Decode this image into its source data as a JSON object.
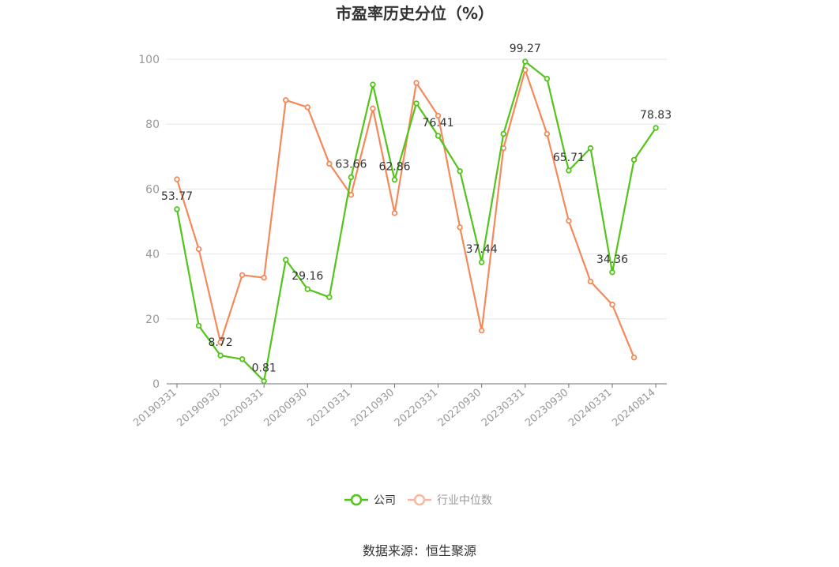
{
  "chart_data": {
    "type": "line",
    "title": "市盈率历史分位（%）",
    "x_tick_labels": [
      "20190331",
      "20190930",
      "20200331",
      "20200930",
      "20210331",
      "20210930",
      "20220331",
      "20220930",
      "20230331",
      "20230930",
      "20240331",
      "20240814"
    ],
    "ylim": [
      0,
      100
    ],
    "y_ticks": [
      0,
      20,
      40,
      60,
      80,
      100
    ],
    "grid": true,
    "legend_position": "bottom",
    "series": [
      {
        "name": "公司",
        "color": "#52c41a",
        "values": [
          53.77,
          17.9,
          8.72,
          7.6,
          0.81,
          38.2,
          29.16,
          26.7,
          63.66,
          92.2,
          62.86,
          86.4,
          76.41,
          65.5,
          37.44,
          77.0,
          99.27,
          94.0,
          65.71,
          72.6,
          34.36,
          69.0,
          78.83
        ],
        "labeled": [
          {
            "index": 0,
            "text": "53.77"
          },
          {
            "index": 2,
            "text": "8.72"
          },
          {
            "index": 4,
            "text": "0.81"
          },
          {
            "index": 6,
            "text": "29.16"
          },
          {
            "index": 8,
            "text": "63.66"
          },
          {
            "index": 10,
            "text": "62.86"
          },
          {
            "index": 12,
            "text": "76.41"
          },
          {
            "index": 14,
            "text": "37.44"
          },
          {
            "index": 16,
            "text": "99.27"
          },
          {
            "index": 18,
            "text": "65.71"
          },
          {
            "index": 20,
            "text": "34.36"
          },
          {
            "index": 22,
            "text": "78.83"
          }
        ]
      },
      {
        "name": "行业中位数",
        "color": "#f5895a",
        "values": [
          63.0,
          41.5,
          12.8,
          33.5,
          32.7,
          87.4,
          85.2,
          67.8,
          58.2,
          84.8,
          52.6,
          92.7,
          82.6,
          48.2,
          16.4,
          72.6,
          96.7,
          77.0,
          50.2,
          31.5,
          24.4,
          8.1,
          null
        ]
      }
    ]
  },
  "source_text": "数据来源：恒生聚源"
}
